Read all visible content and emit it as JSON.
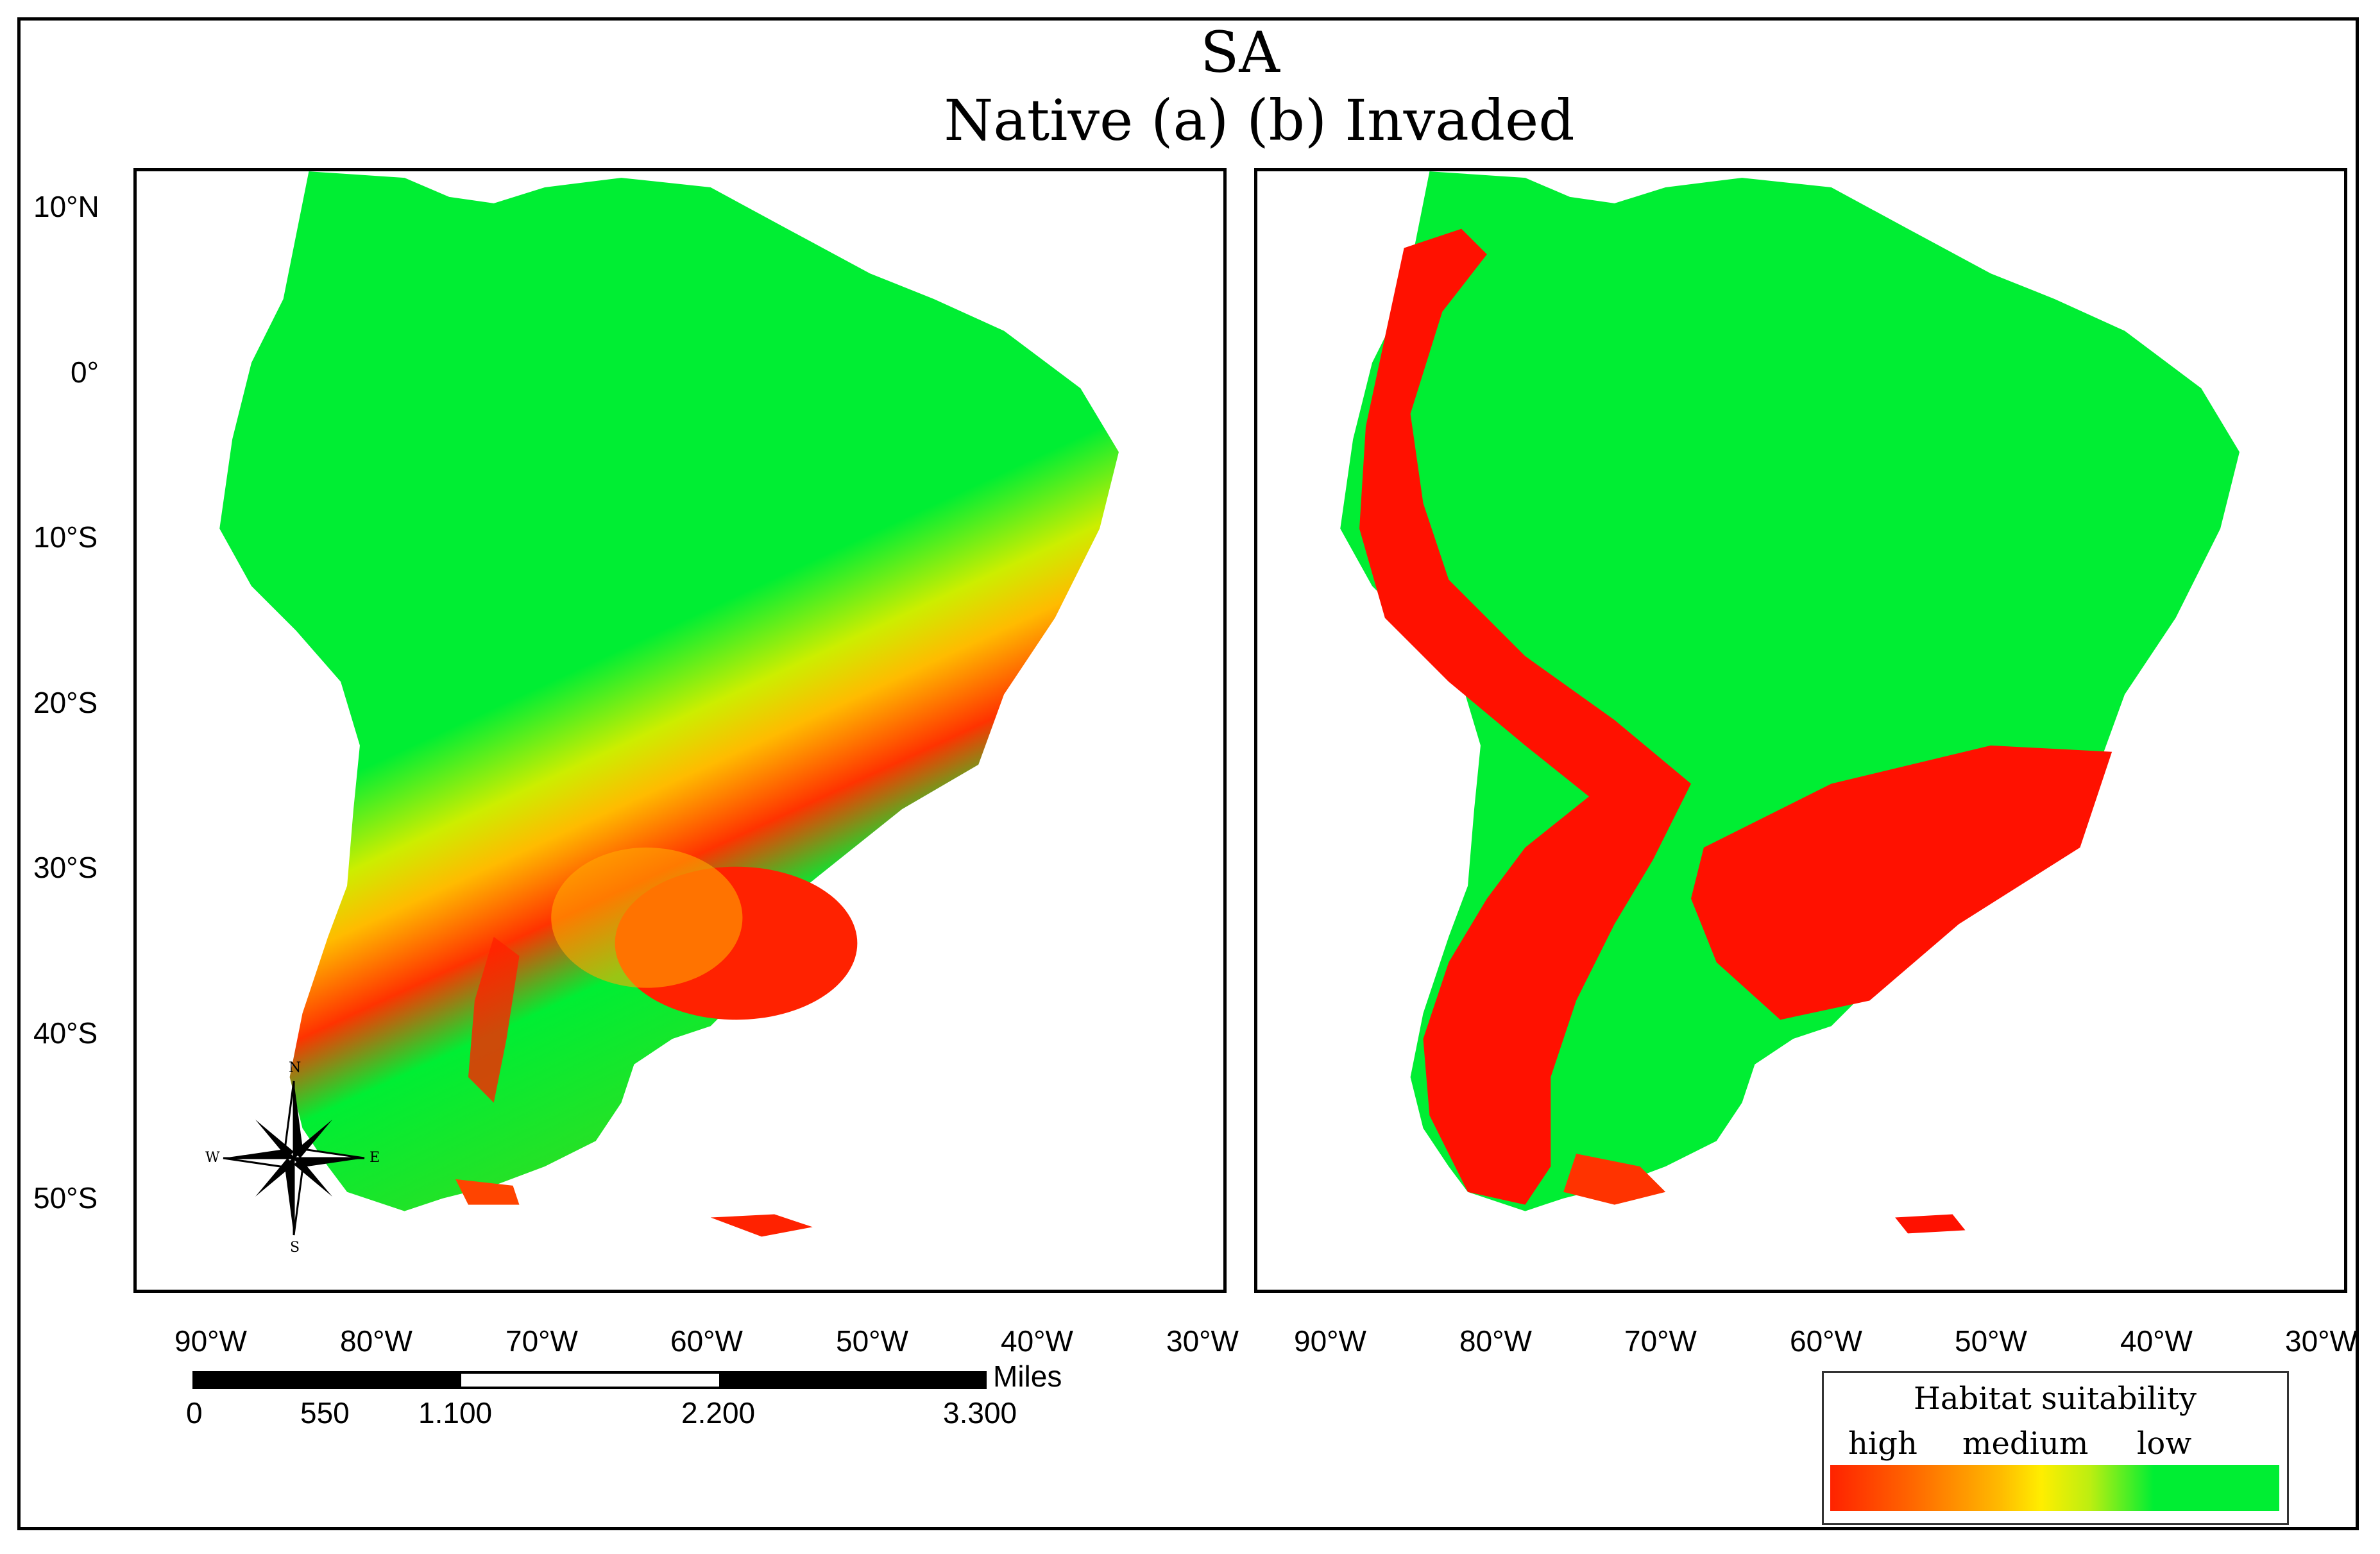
{
  "title": {
    "line1": "SA",
    "line2": "Native (a) (b) Invaded"
  },
  "panels": {
    "native": "Native (a)",
    "invaded": "(b) Invaded"
  },
  "lat_labels": [
    "10°N",
    "0°",
    "10°S",
    "20°S",
    "30°S",
    "40°S",
    "50°S"
  ],
  "lon_labels": [
    "90°W",
    "80°W",
    "70°W",
    "60°W",
    "50°W",
    "40°W",
    "30°W"
  ],
  "scale_bar": {
    "unit": "Miles",
    "ticks": [
      "0",
      "550",
      "1.100",
      "2.200",
      "3.300"
    ]
  },
  "compass": {
    "n": "N",
    "s": "S",
    "e": "E",
    "w": "W"
  },
  "legend": {
    "title": "Habitat suitability",
    "high": "high",
    "medium": "medium",
    "low": "low"
  },
  "colors": {
    "high": "#ff0000",
    "medium": "#ffdd00",
    "low": "#00ee33",
    "land": "#00ee33",
    "frame": "#000000"
  }
}
